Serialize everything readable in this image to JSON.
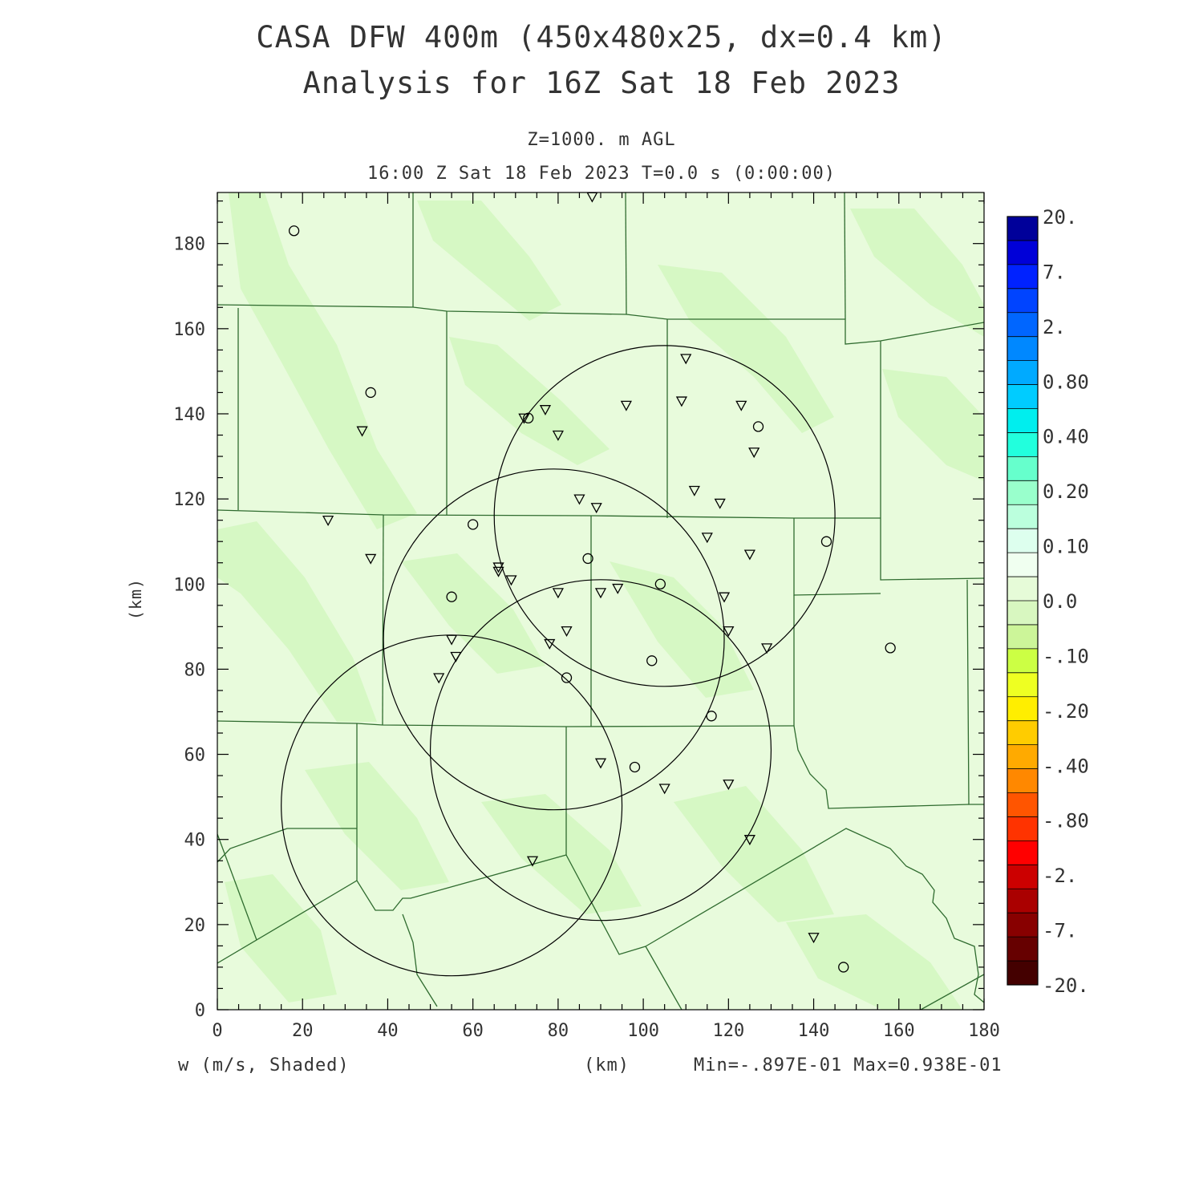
{
  "title_line1": "CASA DFW 400m (450x480x25, dx=0.4 km)",
  "title_line2": "Analysis for 16Z Sat 18 Feb 2023",
  "level_label": "Z=1000. m AGL",
  "time_label": "16:00 Z Sat 18 Feb 2023    T=0.0 s (0:00:00)",
  "field_label": "w (m/s, Shaded)",
  "x_unit": "(km)",
  "y_unit": "(km)",
  "minmax_label": "Min=-.897E-01 Max=0.938E-01",
  "colors": {
    "background_field": "#e8fbdc",
    "field_patch": "#d6f8c4",
    "county_lines": "#2f6b2f",
    "radar_rings": "#000000"
  },
  "axes": {
    "x_ticks": [
      "0",
      "20",
      "40",
      "60",
      "80",
      "100",
      "120",
      "140",
      "160",
      "180"
    ],
    "y_ticks": [
      "0",
      "20",
      "40",
      "60",
      "80",
      "100",
      "120",
      "140",
      "160",
      "180"
    ],
    "xlim": [
      0,
      180
    ],
    "ylim": [
      0,
      192
    ]
  },
  "colorbar": {
    "labels": [
      "20.",
      "7.",
      "2.",
      "0.80",
      "0.40",
      "0.20",
      "0.10",
      "0.0",
      "-.10",
      "-.20",
      "-.40",
      "-.80",
      "-2.",
      "-7.",
      "-20."
    ],
    "colors": [
      "#00009a",
      "#0000d8",
      "#0022ff",
      "#0044ff",
      "#0066ff",
      "#0088ff",
      "#00aaff",
      "#00ccff",
      "#00eeee",
      "#22ffdd",
      "#66ffcc",
      "#99ffcc",
      "#bbffdd",
      "#ddffee",
      "#f0fff0",
      "#e6fbd8",
      "#d8f7c0",
      "#ccf599",
      "#ccff44",
      "#eeff22",
      "#ffee00",
      "#ffcc00",
      "#ffaa00",
      "#ff8800",
      "#ff5500",
      "#ff3300",
      "#ff0000",
      "#cc0000",
      "#aa0000",
      "#880000",
      "#660000",
      "#440000"
    ]
  },
  "map_data": {
    "radar_rings": [
      {
        "cx": 105,
        "cy": 116,
        "r": 40
      },
      {
        "cx": 79,
        "cy": 87,
        "r": 40
      },
      {
        "cx": 90,
        "cy": 61,
        "r": 40
      },
      {
        "cx": 55,
        "cy": 48,
        "r": 40
      }
    ],
    "circle_stations": [
      [
        18,
        183
      ],
      [
        36,
        145
      ],
      [
        73,
        139
      ],
      [
        60,
        114
      ],
      [
        55,
        97
      ],
      [
        87,
        106
      ],
      [
        104,
        100
      ],
      [
        102,
        82
      ],
      [
        82,
        78
      ],
      [
        116,
        69
      ],
      [
        98,
        57
      ],
      [
        127,
        137
      ],
      [
        143,
        110
      ],
      [
        158,
        85
      ],
      [
        147,
        10
      ]
    ],
    "triangle_stations": [
      [
        88,
        191
      ],
      [
        34,
        136
      ],
      [
        26,
        115
      ],
      [
        36,
        106
      ],
      [
        77,
        141
      ],
      [
        72,
        139
      ],
      [
        80,
        135
      ],
      [
        96,
        142
      ],
      [
        110,
        153
      ],
      [
        109,
        143
      ],
      [
        123,
        142
      ],
      [
        126,
        131
      ],
      [
        112,
        122
      ],
      [
        118,
        119
      ],
      [
        85,
        120
      ],
      [
        89,
        118
      ],
      [
        115,
        111
      ],
      [
        125,
        107
      ],
      [
        66,
        104
      ],
      [
        66,
        103
      ],
      [
        69,
        101
      ],
      [
        80,
        98
      ],
      [
        90,
        98
      ],
      [
        94,
        99
      ],
      [
        119,
        97
      ],
      [
        55,
        87
      ],
      [
        56,
        83
      ],
      [
        52,
        78
      ],
      [
        78,
        86
      ],
      [
        82,
        89
      ],
      [
        120,
        89
      ],
      [
        129,
        85
      ],
      [
        90,
        58
      ],
      [
        105,
        52
      ],
      [
        120,
        53
      ],
      [
        125,
        40
      ],
      [
        74,
        35
      ],
      [
        140,
        17
      ]
    ]
  }
}
